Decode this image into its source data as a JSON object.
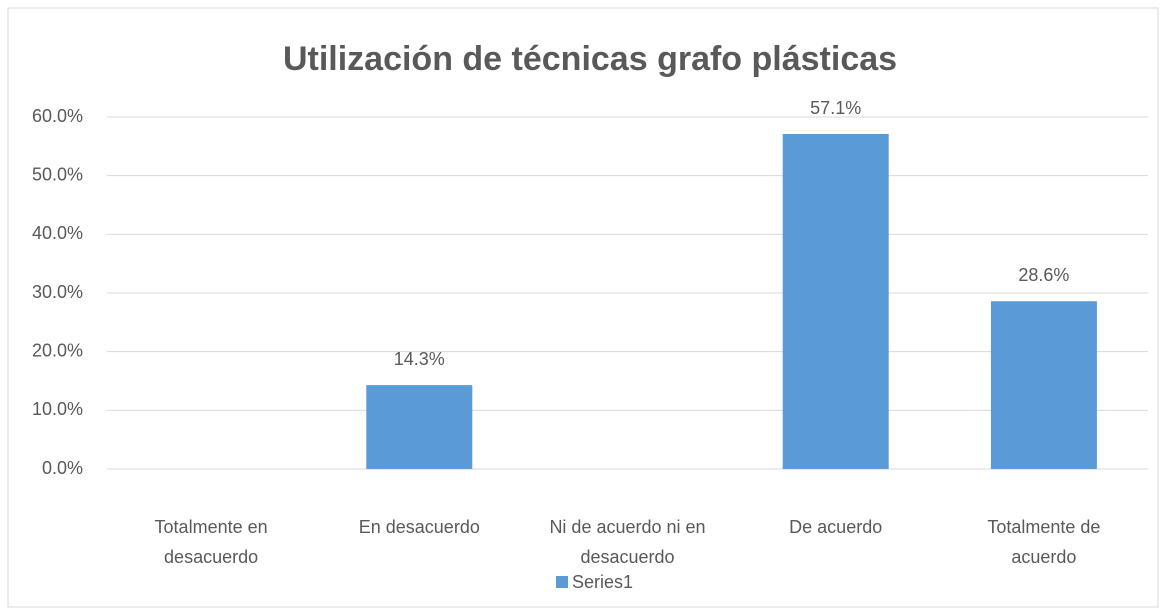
{
  "chart_data": {
    "type": "bar",
    "title": "Utilización de técnicas grafo plásticas",
    "categories": [
      "Totalmente en desacuerdo",
      "En desacuerdo",
      "Ni de acuerdo ni en desacuerdo",
      "De acuerdo",
      "Totalmente de acuerdo"
    ],
    "series": [
      {
        "name": "Series1",
        "color": "#5b9bd5",
        "values": [
          0,
          14.3,
          0,
          57.1,
          28.6
        ],
        "value_labels": [
          null,
          "14.3%",
          null,
          "57.1%",
          "28.6%"
        ]
      }
    ],
    "ylim": [
      0,
      60
    ],
    "yticks": [
      {
        "value": 0,
        "label": "0.0%"
      },
      {
        "value": 10,
        "label": "10.0%"
      },
      {
        "value": 20,
        "label": "20.0%"
      },
      {
        "value": 30,
        "label": "30.0%"
      },
      {
        "value": 40,
        "label": "40.0%"
      },
      {
        "value": 50,
        "label": "50.0%"
      },
      {
        "value": 60,
        "label": "60.0%"
      }
    ],
    "grid": true,
    "legend": "bottom"
  }
}
